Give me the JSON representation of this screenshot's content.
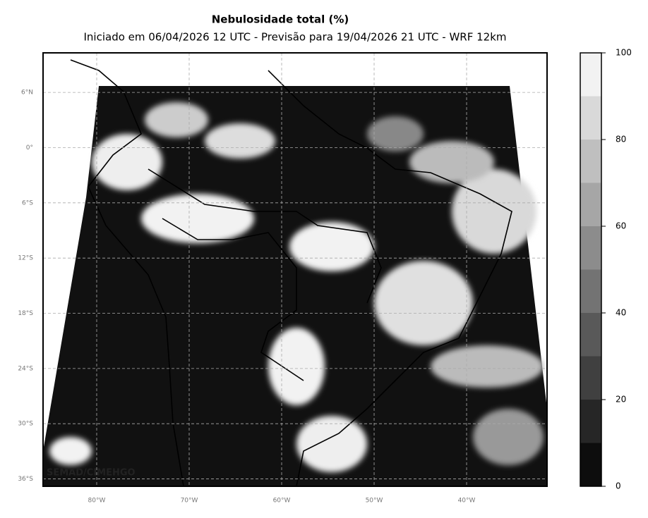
{
  "map": {
    "title": "Nebulosidade total (%)",
    "subtitle": "Iniciado em 06/04/2026 12 UTC - Previsão para 19/04/2026 21 UTC - WRF 12km",
    "credit": "SEMAD/CIMEHGO",
    "xlim": [
      -85.8,
      -31.3
    ],
    "ylim": [
      -36.8,
      10.3
    ],
    "yticks": [
      {
        "value": 6,
        "label": "6°N"
      },
      {
        "value": 0,
        "label": "0°"
      },
      {
        "value": -6,
        "label": "6°S"
      },
      {
        "value": -12,
        "label": "12°S"
      },
      {
        "value": -18,
        "label": "18°S"
      },
      {
        "value": -24,
        "label": "24°S"
      },
      {
        "value": -30,
        "label": "30°S"
      },
      {
        "value": -36,
        "label": "36°S"
      }
    ],
    "xticks": [
      {
        "value": -80,
        "label": "80°W"
      },
      {
        "value": -70,
        "label": "70°W"
      },
      {
        "value": -60,
        "label": "60°W"
      },
      {
        "value": -50,
        "label": "50°W"
      },
      {
        "value": -40,
        "label": "40°W"
      }
    ],
    "grid": true,
    "colorbar": {
      "lim": [
        0,
        100
      ],
      "ticks": [
        0,
        20,
        40,
        60,
        80,
        100
      ],
      "levels": [
        0,
        10,
        20,
        30,
        40,
        50,
        60,
        70,
        80,
        90,
        100
      ],
      "colors": [
        "#0d0d0d",
        "#262626",
        "#404040",
        "#595959",
        "#737373",
        "#8c8c8c",
        "#a6a6a6",
        "#bfbfbf",
        "#d9d9d9",
        "#f2f2f2"
      ]
    }
  }
}
